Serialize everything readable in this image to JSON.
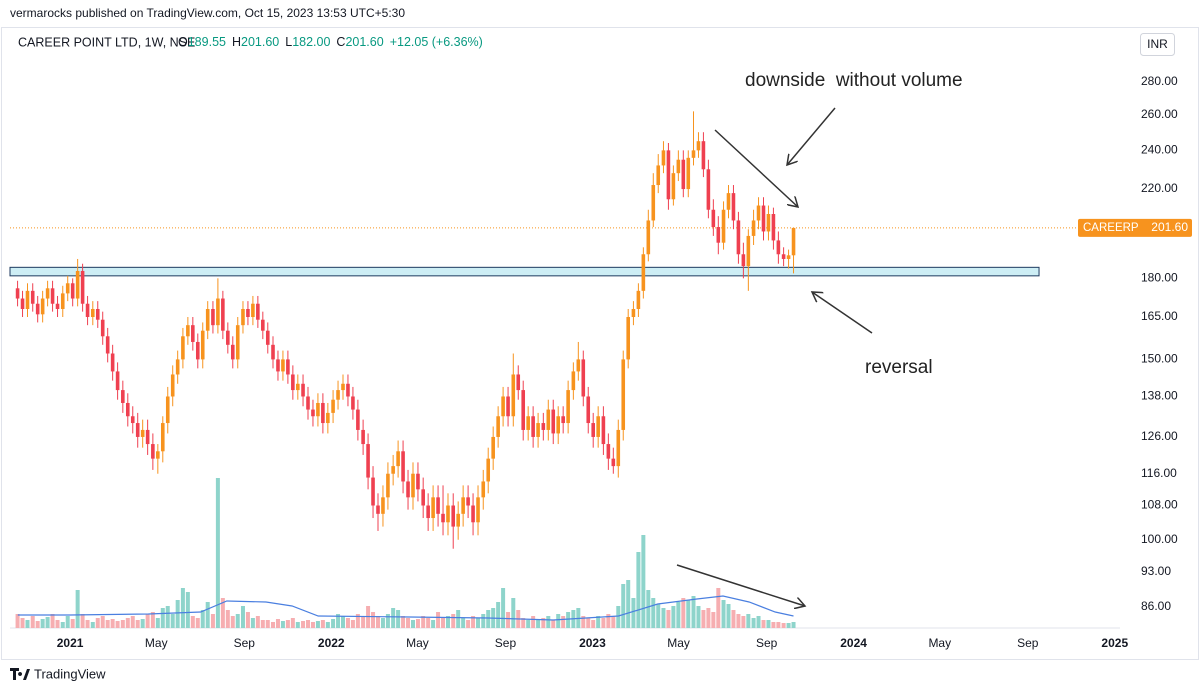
{
  "header": {
    "published": "vermarocks published on TradingView.com, Oct 15, 2023 13:53 UTC+5:30"
  },
  "footer": {
    "brand": "TradingView"
  },
  "chart_data": {
    "type": "candlestick",
    "legend": {
      "title": "CAREER POINT LTD, 1W, NSE",
      "ohlc": [
        {
          "key": "O",
          "value": "189.55"
        },
        {
          "key": "H",
          "value": "201.60"
        },
        {
          "key": "L",
          "value": "182.00"
        },
        {
          "key": "C",
          "value": "201.60"
        }
      ],
      "change": "+12.05 (+6.36%)"
    },
    "currency": "INR",
    "yscale": "log",
    "grid": false,
    "up_color": "#f7931e",
    "down_color": "#ef4050",
    "volume_up_color": "#8ed4cb",
    "volume_down_color": "#f6aeb1",
    "volume_ma_color": "#4a7fe0",
    "xlim": [
      2020.77,
      2025.02
    ],
    "xticks": [
      {
        "value": 2021,
        "label": "2021"
      },
      {
        "value": 2021.33,
        "label": "May"
      },
      {
        "value": 2021.667,
        "label": "Sep"
      },
      {
        "value": 2022,
        "label": "2022"
      },
      {
        "value": 2022.33,
        "label": "May"
      },
      {
        "value": 2022.667,
        "label": "Sep"
      },
      {
        "value": 2023,
        "label": "2023"
      },
      {
        "value": 2023.33,
        "label": "May"
      },
      {
        "value": 2023.667,
        "label": "Sep"
      },
      {
        "value": 2024,
        "label": "2024"
      },
      {
        "value": 2024.33,
        "label": "May"
      },
      {
        "value": 2024.667,
        "label": "Sep"
      },
      {
        "value": 2025,
        "label": "2025"
      }
    ],
    "ylim": [
      82,
      316
    ],
    "yticks": [
      {
        "value": 86,
        "label": "86.00"
      },
      {
        "value": 93,
        "label": "93.00"
      },
      {
        "value": 100,
        "label": "100.00"
      },
      {
        "value": 108,
        "label": "108.00"
      },
      {
        "value": 116,
        "label": "116.00"
      },
      {
        "value": 126,
        "label": "126.00"
      },
      {
        "value": 138,
        "label": "138.00"
      },
      {
        "value": 150,
        "label": "150.00"
      },
      {
        "value": 165,
        "label": "165.00"
      },
      {
        "value": 180,
        "label": "180.00"
      },
      {
        "value": 220,
        "label": "220.00"
      },
      {
        "value": 240,
        "label": "240.00"
      },
      {
        "value": 260,
        "label": "260.00"
      },
      {
        "value": 280,
        "label": "280.00"
      }
    ],
    "x": [
      2020.799,
      2020.818,
      2020.837,
      2020.857,
      2020.876,
      2020.895,
      2020.914,
      2020.933,
      2020.952,
      2020.972,
      2020.991,
      2021.01,
      2021.029,
      2021.048,
      2021.067,
      2021.087,
      2021.106,
      2021.125,
      2021.144,
      2021.163,
      2021.182,
      2021.202,
      2021.221,
      2021.24,
      2021.259,
      2021.278,
      2021.297,
      2021.317,
      2021.336,
      2021.355,
      2021.374,
      2021.393,
      2021.412,
      2021.432,
      2021.451,
      2021.47,
      2021.489,
      2021.508,
      2021.527,
      2021.547,
      2021.566,
      2021.585,
      2021.604,
      2021.623,
      2021.642,
      2021.662,
      2021.681,
      2021.7,
      2021.719,
      2021.738,
      2021.757,
      2021.777,
      2021.796,
      2021.815,
      2021.834,
      2021.853,
      2021.872,
      2021.892,
      2021.911,
      2021.93,
      2021.949,
      2021.968,
      2021.987,
      2022.007,
      2022.026,
      2022.045,
      2022.064,
      2022.083,
      2022.102,
      2022.122,
      2022.141,
      2022.16,
      2022.179,
      2022.198,
      2022.217,
      2022.237,
      2022.256,
      2022.275,
      2022.294,
      2022.313,
      2022.332,
      2022.352,
      2022.371,
      2022.39,
      2022.409,
      2022.428,
      2022.447,
      2022.467,
      2022.486,
      2022.505,
      2022.524,
      2022.543,
      2022.562,
      2022.582,
      2022.601,
      2022.62,
      2022.639,
      2022.658,
      2022.677,
      2022.697,
      2022.716,
      2022.735,
      2022.754,
      2022.773,
      2022.792,
      2022.812,
      2022.831,
      2022.85,
      2022.869,
      2022.888,
      2022.907,
      2022.927,
      2022.946,
      2022.965,
      2022.984,
      2023.003,
      2023.022,
      2023.042,
      2023.061,
      2023.08,
      2023.099,
      2023.118,
      2023.137,
      2023.157,
      2023.176,
      2023.195,
      2023.214,
      2023.233,
      2023.252,
      2023.272,
      2023.291,
      2023.31,
      2023.329,
      2023.348,
      2023.367,
      2023.387,
      2023.406,
      2023.425,
      2023.444,
      2023.463,
      2023.482,
      2023.502,
      2023.521,
      2023.54,
      2023.559,
      2023.578,
      2023.597,
      2023.617,
      2023.636,
      2023.655,
      2023.674,
      2023.693,
      2023.712,
      2023.732,
      2023.751,
      2023.77
    ],
    "open": [
      176,
      172,
      168,
      175,
      170,
      166,
      172,
      176,
      170,
      168,
      174,
      178,
      172,
      183,
      170,
      165,
      168,
      164,
      158,
      152,
      146,
      140,
      136,
      132,
      130,
      126,
      128,
      124,
      120,
      122,
      130,
      138,
      145,
      150,
      158,
      162,
      156,
      150,
      160,
      168,
      162,
      172,
      160,
      155,
      150,
      162,
      168,
      165,
      170,
      164,
      160,
      155,
      150,
      146,
      150,
      145,
      140,
      142,
      138,
      134,
      132,
      136,
      130,
      133,
      137,
      140,
      142,
      138,
      134,
      128,
      124,
      115,
      108,
      106,
      110,
      116,
      118,
      122,
      114,
      110,
      116,
      112,
      108,
      105,
      110,
      106,
      104,
      108,
      103,
      106,
      110,
      108,
      104,
      110,
      114,
      120,
      126,
      132,
      138,
      132,
      145,
      140,
      128,
      132,
      126,
      130,
      128,
      134,
      127,
      132,
      130,
      140,
      146,
      150,
      138,
      130,
      126,
      132,
      124,
      120,
      118,
      128,
      150,
      165,
      168,
      175,
      190,
      205,
      222,
      232,
      240,
      215,
      228,
      235,
      220,
      236,
      240,
      245,
      230,
      210,
      202,
      195,
      210,
      218,
      205,
      190,
      185,
      198,
      205,
      212,
      200,
      208,
      196,
      190,
      188,
      189.55
    ],
    "high": [
      179,
      175,
      178,
      178,
      173,
      175,
      179,
      179,
      173,
      177,
      181,
      180,
      188,
      186,
      173,
      171,
      171,
      167,
      161,
      155,
      149,
      143,
      139,
      135,
      133,
      131,
      131,
      127,
      124,
      132,
      141,
      148,
      153,
      161,
      165,
      165,
      159,
      163,
      171,
      171,
      180,
      175,
      163,
      158,
      165,
      171,
      171,
      173,
      173,
      167,
      163,
      158,
      153,
      153,
      153,
      148,
      145,
      145,
      141,
      137,
      139,
      139,
      136,
      140,
      143,
      145,
      145,
      141,
      137,
      131,
      127,
      118,
      111,
      113,
      119,
      121,
      125,
      125,
      117,
      119,
      119,
      115,
      111,
      113,
      113,
      113,
      111,
      111,
      109,
      113,
      113,
      111,
      113,
      117,
      123,
      129,
      135,
      141,
      141,
      152,
      148,
      143,
      135,
      135,
      133,
      133,
      137,
      137,
      135,
      135,
      143,
      149,
      156,
      153,
      141,
      133,
      135,
      135,
      127,
      123,
      131,
      153,
      168,
      171,
      178,
      193,
      210,
      228,
      238,
      245,
      244,
      232,
      240,
      240,
      240,
      262,
      250,
      250,
      235,
      215,
      207,
      214,
      222,
      222,
      209,
      195,
      201,
      210,
      216,
      216,
      212,
      211,
      200,
      193,
      192,
      201.6
    ],
    "low": [
      169,
      165,
      165,
      167,
      163,
      163,
      169,
      167,
      165,
      165,
      171,
      169,
      169,
      167,
      162,
      162,
      161,
      155,
      149,
      143,
      137,
      133,
      129,
      127,
      123,
      123,
      121,
      117,
      116,
      119,
      127,
      135,
      142,
      147,
      155,
      153,
      147,
      147,
      157,
      159,
      159,
      157,
      152,
      147,
      147,
      159,
      162,
      162,
      161,
      157,
      152,
      147,
      143,
      143,
      142,
      137,
      137,
      135,
      131,
      129,
      129,
      127,
      127,
      130,
      134,
      137,
      135,
      131,
      125,
      121,
      112,
      105,
      102,
      103,
      107,
      113,
      115,
      111,
      107,
      107,
      109,
      105,
      102,
      102,
      103,
      101,
      101,
      98,
      100,
      103,
      105,
      101,
      101,
      107,
      111,
      117,
      123,
      129,
      129,
      129,
      137,
      125,
      125,
      123,
      123,
      125,
      125,
      124,
      124,
      127,
      127,
      137,
      143,
      135,
      127,
      123,
      123,
      121,
      117,
      116,
      115,
      125,
      147,
      162,
      165,
      172,
      187,
      202,
      218,
      228,
      210,
      212,
      224,
      216,
      216,
      232,
      236,
      226,
      206,
      198,
      190,
      192,
      206,
      201,
      186,
      180,
      175,
      194,
      201,
      196,
      196,
      192,
      186,
      185,
      184,
      182
    ],
    "close": [
      172,
      168,
      175,
      170,
      166,
      172,
      176,
      170,
      168,
      174,
      178,
      172,
      183,
      170,
      165,
      168,
      164,
      158,
      152,
      146,
      140,
      136,
      132,
      130,
      126,
      128,
      124,
      120,
      122,
      130,
      138,
      145,
      150,
      158,
      162,
      156,
      150,
      160,
      168,
      162,
      172,
      160,
      155,
      150,
      162,
      168,
      165,
      170,
      164,
      160,
      155,
      150,
      146,
      150,
      145,
      140,
      142,
      138,
      134,
      132,
      136,
      130,
      133,
      137,
      140,
      142,
      138,
      134,
      128,
      124,
      115,
      108,
      106,
      110,
      116,
      118,
      122,
      114,
      110,
      116,
      112,
      108,
      105,
      110,
      106,
      104,
      108,
      103,
      106,
      110,
      108,
      104,
      110,
      114,
      120,
      126,
      132,
      138,
      132,
      145,
      140,
      128,
      132,
      126,
      130,
      128,
      134,
      127,
      132,
      130,
      140,
      146,
      150,
      138,
      130,
      126,
      132,
      124,
      120,
      118,
      128,
      150,
      165,
      168,
      175,
      190,
      205,
      222,
      232,
      240,
      215,
      228,
      235,
      220,
      236,
      240,
      245,
      230,
      210,
      202,
      195,
      210,
      218,
      205,
      190,
      185,
      198,
      205,
      212,
      200,
      208,
      196,
      190,
      188,
      189.55,
      201.6
    ],
    "volume": [
      14,
      10,
      8,
      12,
      7,
      9,
      11,
      14,
      8,
      6,
      12,
      9,
      38,
      14,
      8,
      6,
      10,
      12,
      8,
      9,
      7,
      8,
      10,
      12,
      8,
      9,
      14,
      16,
      10,
      20,
      22,
      14,
      28,
      40,
      36,
      12,
      10,
      18,
      26,
      14,
      150,
      30,
      18,
      12,
      14,
      22,
      16,
      10,
      12,
      8,
      8,
      6,
      9,
      7,
      8,
      10,
      6,
      7,
      8,
      6,
      7,
      8,
      6,
      9,
      14,
      12,
      10,
      8,
      14,
      12,
      22,
      16,
      12,
      10,
      14,
      20,
      18,
      12,
      10,
      8,
      9,
      12,
      10,
      8,
      16,
      10,
      12,
      14,
      18,
      10,
      8,
      12,
      10,
      14,
      18,
      20,
      26,
      40,
      16,
      30,
      18,
      10,
      8,
      12,
      8,
      10,
      12,
      8,
      14,
      12,
      16,
      18,
      20,
      12,
      10,
      8,
      12,
      10,
      14,
      12,
      22,
      44,
      48,
      30,
      76,
      93,
      38,
      30,
      24,
      20,
      18,
      22,
      26,
      30,
      28,
      32,
      22,
      18,
      20,
      16,
      40,
      28,
      24,
      18,
      14,
      12,
      14,
      10,
      12,
      8,
      8,
      6,
      6,
      5,
      5,
      6
    ],
    "volume_ma": {
      "x": [
        2020.8,
        2021.0,
        2021.3,
        2021.5,
        2021.6,
        2021.75,
        2021.85,
        2021.95,
        2022.3,
        2022.6,
        2022.85,
        2023.1,
        2023.25,
        2023.4,
        2023.5,
        2023.6,
        2023.7,
        2023.77
      ],
      "values": [
        13,
        13,
        14,
        16,
        27,
        26,
        22,
        12,
        11,
        10,
        8,
        12,
        24,
        29,
        32,
        26,
        16,
        12
      ]
    },
    "zone": {
      "x": [
        2020.77,
        2024.71
      ],
      "y": [
        181,
        184.5
      ]
    },
    "last_price": {
      "name": "CAREERP",
      "value": 201.6,
      "label": "201.60",
      "color": "#f7931e"
    },
    "annotations": [
      {
        "text": "downside  without volume"
      },
      {
        "text": "reversal"
      }
    ]
  }
}
